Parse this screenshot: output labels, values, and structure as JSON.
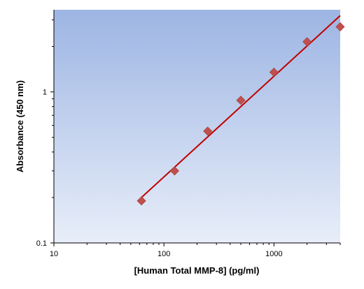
{
  "chart_data": {
    "type": "scatter",
    "title": "",
    "xlabel": "[Human Total MMP-8] (pg/ml)",
    "ylabel": "Absorbance (450 nm)",
    "xscale": "log",
    "yscale": "log",
    "xlim": [
      10,
      4000
    ],
    "ylim": [
      0.1,
      3.5
    ],
    "x_ticks": [
      10,
      100,
      1000
    ],
    "x_tick_labels": [
      "10",
      "100",
      "1000"
    ],
    "y_ticks": [
      0.1,
      1
    ],
    "y_tick_labels": [
      "0.1",
      "1"
    ],
    "grid": false,
    "legend": "none",
    "background_gradient": [
      "#9db5e3",
      "#e8eef9"
    ],
    "series": [
      {
        "kind": "points",
        "marker": "diamond",
        "color": "#c0504d",
        "x": [
          62.5,
          125,
          250,
          500,
          1000,
          2000,
          4000
        ],
        "y": [
          0.19,
          0.3,
          0.55,
          0.88,
          1.35,
          2.15,
          2.7
        ]
      },
      {
        "kind": "fit_line",
        "color": "#c00000",
        "x": [
          62.5,
          4000
        ],
        "y": [
          0.2,
          3.2
        ]
      }
    ]
  }
}
